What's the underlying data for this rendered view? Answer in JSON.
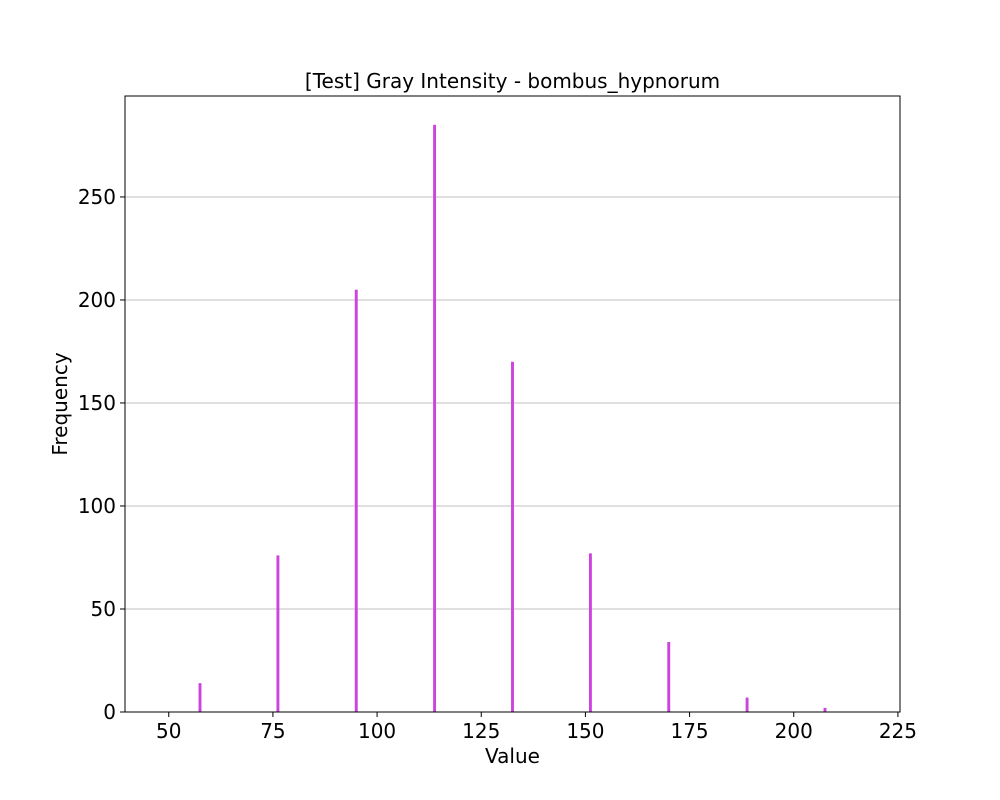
{
  "chart_data": {
    "type": "bar",
    "title": "[Test] Gray Intensity - bombus_hypnorum",
    "xlabel": "Value",
    "ylabel": "Frequency",
    "xlim": [
      39.5,
      225.5
    ],
    "ylim": [
      0,
      299
    ],
    "xticks": [
      50,
      75,
      100,
      125,
      150,
      175,
      200,
      225
    ],
    "yticks": [
      0,
      50,
      100,
      150,
      200,
      250
    ],
    "grid": "y",
    "bar_color": "#cc44dd",
    "bar_width": 0.7,
    "x": [
      57.5,
      76.2,
      95.0,
      113.8,
      132.5,
      151.2,
      170.0,
      188.8,
      207.5
    ],
    "values": [
      14,
      76,
      205,
      285,
      170,
      77,
      34,
      7,
      2
    ]
  }
}
